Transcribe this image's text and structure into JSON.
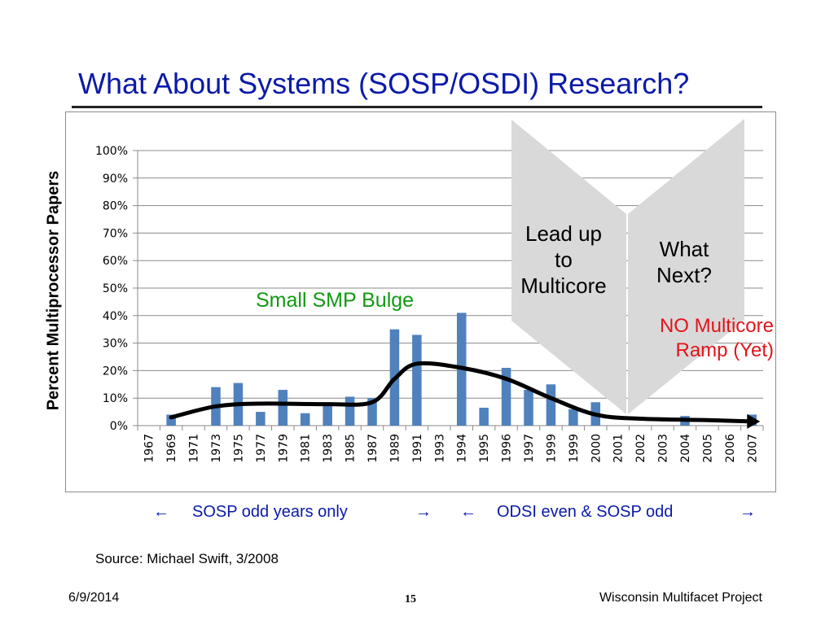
{
  "slide": {
    "title": "What About Systems (SOSP/OSDI) Research?",
    "source": "Source: Michael Swift, 3/2008",
    "footer": {
      "date": "6/9/2014",
      "page": "15",
      "org": "Wisconsin Multifacet Project"
    },
    "bottom_labels": {
      "sosp_arrow_left": "←",
      "sosp_label": "SOSP odd years only",
      "sosp_arrow_right": "→",
      "odsi_arrow_left": "←",
      "odsi_label": "ODSI even & SOSP odd",
      "odsi_arrow_right": "→"
    },
    "callouts": {
      "bulge": "Small SMP Bulge",
      "lead_up": [
        "Lead up",
        "to",
        "Multicore"
      ],
      "what_next": [
        "What",
        "Next?"
      ],
      "no_multicore": [
        "NO Multicore",
        "Ramp (Yet)"
      ]
    },
    "colors": {
      "title": "#0a1aa8",
      "bar": "#4f81bd",
      "trend": "#000000",
      "bulge_text": "#119a11",
      "no_multicore_text": "#e3141a",
      "chevron_fill": "#d9d9d9"
    }
  },
  "chart_data": {
    "type": "bar",
    "title": "",
    "xlabel": "",
    "ylabel": "Percent Multiprocessor Papers",
    "ylim": [
      0,
      100
    ],
    "yticks": [
      "0%",
      "10%",
      "20%",
      "30%",
      "40%",
      "50%",
      "60%",
      "70%",
      "80%",
      "90%",
      "100%"
    ],
    "grid": true,
    "categories": [
      "1967",
      "1969",
      "1971",
      "1973",
      "1975",
      "1977",
      "1979",
      "1981",
      "1983",
      "1985",
      "1987",
      "1989",
      "1991",
      "1993",
      "1994",
      "1995",
      "1996",
      "1997",
      "1999",
      "1999",
      "2000",
      "2001",
      "2002",
      "2003",
      "2004",
      "2005",
      "2006",
      "2007"
    ],
    "values": [
      0,
      4,
      0,
      14,
      15.5,
      5,
      13,
      4.5,
      7.5,
      10.5,
      10,
      35,
      33,
      0,
      41,
      6.5,
      21,
      13,
      15,
      6,
      8.5,
      0,
      0,
      0,
      3.5,
      0,
      0,
      4
    ],
    "trend_line": {
      "points": [
        [
          1,
          3
        ],
        [
          3,
          7
        ],
        [
          5,
          8
        ],
        [
          8,
          7.8
        ],
        [
          10,
          8.5
        ],
        [
          11,
          17
        ],
        [
          12,
          22.5
        ],
        [
          14,
          21
        ],
        [
          16,
          17
        ],
        [
          18,
          10
        ],
        [
          20,
          4
        ],
        [
          22,
          2.5
        ],
        [
          25,
          2
        ],
        [
          27,
          1.5
        ]
      ],
      "arrowhead": true
    }
  }
}
